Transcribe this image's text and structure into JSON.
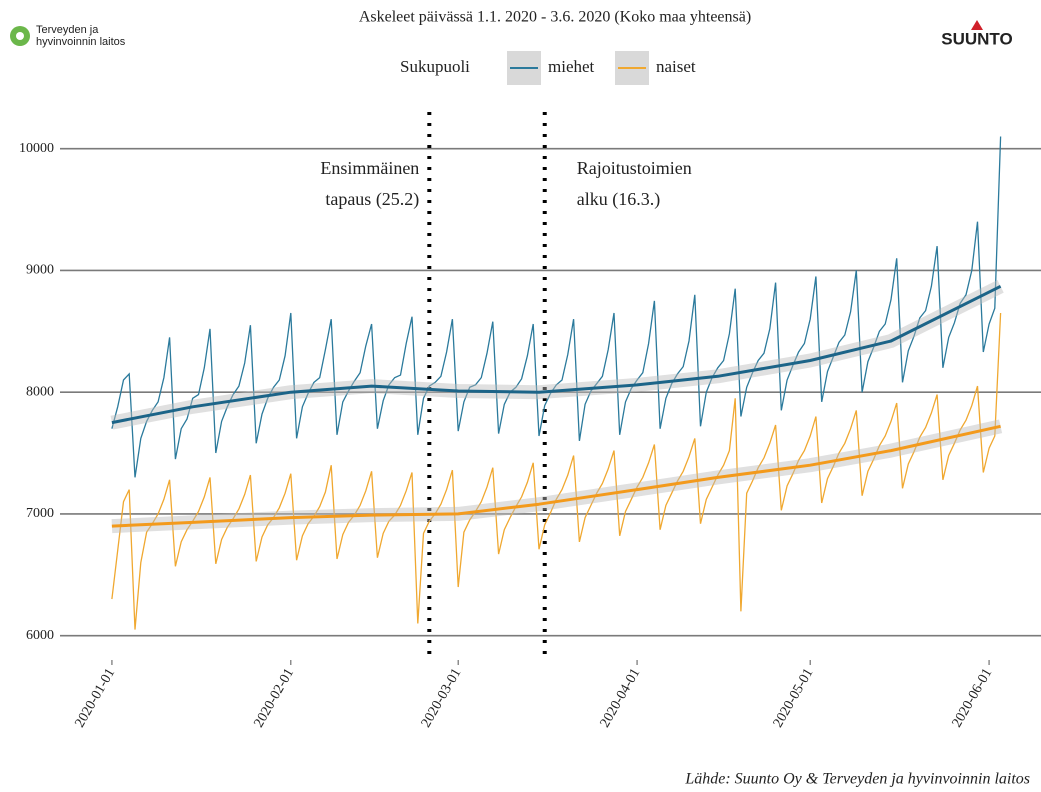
{
  "chart_data": {
    "type": "line",
    "title": "Askeleet päivässä 1.1. 2020 - 3.6. 2020 (Koko maa yhteensä)",
    "legend_title": "Sukupuoli",
    "source": "Lähde: Suunto Oy & Terveyden ja hyvinvoinnin laitos",
    "logos": {
      "thl": [
        "Terveyden ja",
        "hyvinvoinnin laitos"
      ],
      "suunto": "SUUNTO"
    },
    "x": [
      "2020-01-01",
      "2020-01-02",
      "2020-01-03",
      "2020-01-04",
      "2020-01-05",
      "2020-01-06",
      "2020-01-07",
      "2020-01-08",
      "2020-01-09",
      "2020-01-10",
      "2020-01-11",
      "2020-01-12",
      "2020-01-13",
      "2020-01-14",
      "2020-01-15",
      "2020-01-16",
      "2020-01-17",
      "2020-01-18",
      "2020-01-19",
      "2020-01-20",
      "2020-01-21",
      "2020-01-22",
      "2020-01-23",
      "2020-01-24",
      "2020-01-25",
      "2020-01-26",
      "2020-01-27",
      "2020-01-28",
      "2020-01-29",
      "2020-01-30",
      "2020-01-31",
      "2020-02-01",
      "2020-02-02",
      "2020-02-03",
      "2020-02-04",
      "2020-02-05",
      "2020-02-06",
      "2020-02-07",
      "2020-02-08",
      "2020-02-09",
      "2020-02-10",
      "2020-02-11",
      "2020-02-12",
      "2020-02-13",
      "2020-02-14",
      "2020-02-15",
      "2020-02-16",
      "2020-02-17",
      "2020-02-18",
      "2020-02-19",
      "2020-02-20",
      "2020-02-21",
      "2020-02-22",
      "2020-02-23",
      "2020-02-24",
      "2020-02-25",
      "2020-02-26",
      "2020-02-27",
      "2020-02-28",
      "2020-02-29",
      "2020-03-01",
      "2020-03-02",
      "2020-03-03",
      "2020-03-04",
      "2020-03-05",
      "2020-03-06",
      "2020-03-07",
      "2020-03-08",
      "2020-03-09",
      "2020-03-10",
      "2020-03-11",
      "2020-03-12",
      "2020-03-13",
      "2020-03-14",
      "2020-03-15",
      "2020-03-16",
      "2020-03-17",
      "2020-03-18",
      "2020-03-19",
      "2020-03-20",
      "2020-03-21",
      "2020-03-22",
      "2020-03-23",
      "2020-03-24",
      "2020-03-25",
      "2020-03-26",
      "2020-03-27",
      "2020-03-28",
      "2020-03-29",
      "2020-03-30",
      "2020-03-31",
      "2020-04-01",
      "2020-04-02",
      "2020-04-03",
      "2020-04-04",
      "2020-04-05",
      "2020-04-06",
      "2020-04-07",
      "2020-04-08",
      "2020-04-09",
      "2020-04-10",
      "2020-04-11",
      "2020-04-12",
      "2020-04-13",
      "2020-04-14",
      "2020-04-15",
      "2020-04-16",
      "2020-04-17",
      "2020-04-18",
      "2020-04-19",
      "2020-04-20",
      "2020-04-21",
      "2020-04-22",
      "2020-04-23",
      "2020-04-24",
      "2020-04-25",
      "2020-04-26",
      "2020-04-27",
      "2020-04-28",
      "2020-04-29",
      "2020-04-30",
      "2020-05-01",
      "2020-05-02",
      "2020-05-03",
      "2020-05-04",
      "2020-05-05",
      "2020-05-06",
      "2020-05-07",
      "2020-05-08",
      "2020-05-09",
      "2020-05-10",
      "2020-05-11",
      "2020-05-12",
      "2020-05-13",
      "2020-05-14",
      "2020-05-15",
      "2020-05-16",
      "2020-05-17",
      "2020-05-18",
      "2020-05-19",
      "2020-05-20",
      "2020-05-21",
      "2020-05-22",
      "2020-05-23",
      "2020-05-24",
      "2020-05-25",
      "2020-05-26",
      "2020-05-27",
      "2020-05-28",
      "2020-05-29",
      "2020-05-30",
      "2020-05-31",
      "2020-06-01",
      "2020-06-02",
      "2020-06-03"
    ],
    "series": [
      {
        "name": "miehet",
        "color": "#2b7a9c",
        "trend_color": "#1c6488",
        "values": [
          7700,
          7880,
          8100,
          8150,
          7300,
          7620,
          7760,
          7850,
          7920,
          8120,
          8450,
          7450,
          7700,
          7780,
          7950,
          7980,
          8200,
          8520,
          7500,
          7760,
          7880,
          7980,
          8050,
          8240,
          8550,
          7580,
          7820,
          7950,
          8040,
          8100,
          8300,
          8650,
          7620,
          7880,
          7990,
          8080,
          8120,
          8350,
          8600,
          7650,
          7920,
          8010,
          8090,
          8160,
          8380,
          8560,
          7700,
          7930,
          8060,
          8120,
          8140,
          8400,
          8620,
          7650,
          7950,
          8050,
          8080,
          8130,
          8330,
          8600,
          7680,
          7920,
          8040,
          8060,
          8120,
          8320,
          8580,
          7660,
          7900,
          8000,
          8040,
          8110,
          8300,
          8560,
          7640,
          7890,
          7990,
          8060,
          8100,
          8310,
          8600,
          7600,
          7900,
          8010,
          8070,
          8130,
          8350,
          8650,
          7650,
          7920,
          8030,
          8100,
          8160,
          8400,
          8750,
          7700,
          7950,
          8070,
          8150,
          8210,
          8420,
          8800,
          7720,
          8000,
          8120,
          8200,
          8260,
          8480,
          8850,
          7800,
          8040,
          8160,
          8260,
          8320,
          8520,
          8900,
          7850,
          8100,
          8220,
          8330,
          8400,
          8600,
          8950,
          7920,
          8170,
          8290,
          8410,
          8470,
          8660,
          9000,
          8000,
          8250,
          8370,
          8500,
          8560,
          8760,
          9100,
          8080,
          8340,
          8460,
          8610,
          8670,
          8870,
          9200,
          8200,
          8450,
          8570,
          8730,
          8800,
          9000,
          9400,
          8330,
          8560,
          8690,
          10100
        ],
        "trend": [
          7750,
          7880,
          8000,
          8050,
          8010,
          8000,
          8060,
          8130,
          8260,
          8420,
          8870
        ]
      },
      {
        "name": "naiset",
        "color": "#f0a830",
        "trend_color": "#f39a1c",
        "values": [
          6300,
          6700,
          7100,
          7200,
          6050,
          6600,
          6850,
          6920,
          7000,
          7120,
          7280,
          6570,
          6770,
          6870,
          6940,
          7020,
          7140,
          7300,
          6590,
          6790,
          6890,
          6960,
          7040,
          7160,
          7320,
          6610,
          6810,
          6910,
          6970,
          7050,
          7170,
          7330,
          6620,
          6820,
          6920,
          6980,
          7060,
          7180,
          7400,
          6630,
          6830,
          6930,
          6990,
          7070,
          7190,
          7350,
          6640,
          6840,
          6940,
          6990,
          7070,
          7190,
          7340,
          6100,
          6840,
          6940,
          7000,
          7080,
          7200,
          7360,
          6400,
          6850,
          6950,
          7020,
          7100,
          7220,
          7380,
          6670,
          6870,
          6970,
          7060,
          7140,
          7260,
          7420,
          6710,
          6910,
          7010,
          7120,
          7200,
          7320,
          7480,
          6770,
          6970,
          7070,
          7170,
          7250,
          7370,
          7520,
          6820,
          7020,
          7120,
          7220,
          7300,
          7420,
          7570,
          6870,
          7070,
          7170,
          7270,
          7350,
          7470,
          7620,
          6920,
          7120,
          7220,
          7320,
          7400,
          7520,
          7950,
          6200,
          7170,
          7270,
          7380,
          7460,
          7580,
          7730,
          7030,
          7230,
          7330,
          7440,
          7520,
          7640,
          7800,
          7090,
          7290,
          7390,
          7500,
          7580,
          7700,
          7850,
          7150,
          7350,
          7450,
          7560,
          7640,
          7760,
          7910,
          7210,
          7410,
          7510,
          7630,
          7710,
          7830,
          7980,
          7280,
          7480,
          7580,
          7690,
          7770,
          7890,
          8050,
          7340,
          7540,
          7640,
          8650
        ],
        "trend": [
          6900,
          6930,
          6970,
          6990,
          7000,
          7080,
          7200,
          7300,
          7400,
          7520,
          7720
        ]
      }
    ],
    "trend_x": [
      "2020-01-01",
      "2020-01-15",
      "2020-02-01",
      "2020-02-15",
      "2020-03-01",
      "2020-03-15",
      "2020-04-01",
      "2020-04-15",
      "2020-05-01",
      "2020-05-15",
      "2020-06-03"
    ],
    "annotations": [
      {
        "x": "2020-02-25",
        "text": [
          "Ensimmäinen",
          "tapaus (25.2)"
        ]
      },
      {
        "x": "2020-03-16",
        "text": [
          "Rajoitustoimien",
          "alku (16.3.)"
        ]
      }
    ],
    "xlim": [
      "2019-12-23",
      "2020-06-10"
    ],
    "xticks": [
      "2020-01-01",
      "2020-02-01",
      "2020-03-01",
      "2020-04-01",
      "2020-05-01",
      "2020-06-01"
    ],
    "ylim": [
      5800,
      10400
    ],
    "yticks": [
      6000,
      7000,
      8000,
      9000,
      10000
    ],
    "grid": true
  }
}
